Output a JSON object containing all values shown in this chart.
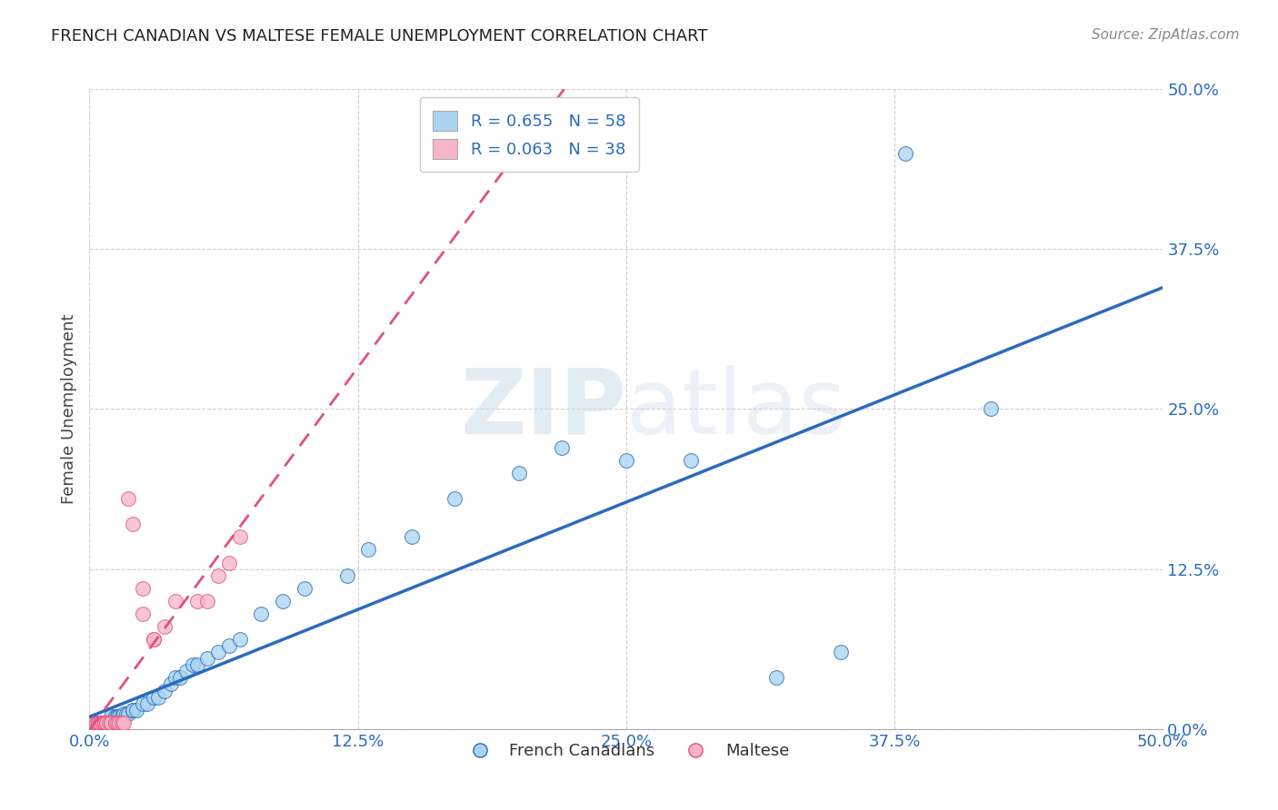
{
  "title": "FRENCH CANADIAN VS MALTESE FEMALE UNEMPLOYMENT CORRELATION CHART",
  "source": "Source: ZipAtlas.com",
  "ylabel": "Female Unemployment",
  "xlim": [
    0.0,
    0.5
  ],
  "ylim": [
    0.0,
    0.5
  ],
  "xtick_labels": [
    "0.0%",
    "12.5%",
    "25.0%",
    "37.5%",
    "50.0%"
  ],
  "ytick_labels": [
    "0.0%",
    "12.5%",
    "25.0%",
    "37.5%",
    "50.0%"
  ],
  "xtick_values": [
    0.0,
    0.125,
    0.25,
    0.375,
    0.5
  ],
  "ytick_values": [
    0.0,
    0.125,
    0.25,
    0.375,
    0.5
  ],
  "blue_R": "R = 0.655",
  "blue_N": "N = 58",
  "pink_R": "R = 0.063",
  "pink_N": "N = 38",
  "blue_color": "#A8D4F0",
  "pink_color": "#F8B4C8",
  "blue_line_color": "#2B6BBD",
  "pink_line_color": "#E05080",
  "watermark_zip": "ZIP",
  "watermark_atlas": "atlas",
  "legend_label_blue": "French Canadians",
  "legend_label_pink": "Maltese",
  "blue_x": [
    0.002,
    0.003,
    0.004,
    0.005,
    0.005,
    0.006,
    0.006,
    0.007,
    0.007,
    0.008,
    0.008,
    0.009,
    0.009,
    0.01,
    0.01,
    0.01,
    0.01,
    0.012,
    0.013,
    0.013,
    0.014,
    0.015,
    0.016,
    0.017,
    0.018,
    0.02,
    0.02,
    0.022,
    0.025,
    0.027,
    0.03,
    0.032,
    0.035,
    0.038,
    0.04,
    0.042,
    0.045,
    0.048,
    0.05,
    0.055,
    0.06,
    0.065,
    0.07,
    0.08,
    0.09,
    0.1,
    0.12,
    0.13,
    0.15,
    0.17,
    0.2,
    0.22,
    0.25,
    0.28,
    0.32,
    0.35,
    0.38,
    0.42
  ],
  "blue_y": [
    0.005,
    0.005,
    0.005,
    0.005,
    0.005,
    0.005,
    0.005,
    0.005,
    0.005,
    0.005,
    0.005,
    0.005,
    0.005,
    0.005,
    0.005,
    0.008,
    0.01,
    0.01,
    0.01,
    0.01,
    0.01,
    0.01,
    0.012,
    0.012,
    0.012,
    0.015,
    0.015,
    0.015,
    0.02,
    0.02,
    0.025,
    0.025,
    0.03,
    0.035,
    0.04,
    0.04,
    0.045,
    0.05,
    0.05,
    0.055,
    0.06,
    0.065,
    0.07,
    0.09,
    0.1,
    0.11,
    0.12,
    0.14,
    0.15,
    0.18,
    0.2,
    0.22,
    0.21,
    0.21,
    0.04,
    0.06,
    0.45,
    0.25
  ],
  "pink_x": [
    0.001,
    0.002,
    0.002,
    0.003,
    0.003,
    0.004,
    0.004,
    0.005,
    0.005,
    0.005,
    0.006,
    0.006,
    0.007,
    0.007,
    0.008,
    0.008,
    0.009,
    0.01,
    0.01,
    0.012,
    0.012,
    0.013,
    0.014,
    0.015,
    0.016,
    0.018,
    0.02,
    0.025,
    0.025,
    0.03,
    0.03,
    0.035,
    0.04,
    0.05,
    0.055,
    0.06,
    0.065,
    0.07
  ],
  "pink_y": [
    0.005,
    0.005,
    0.005,
    0.005,
    0.005,
    0.005,
    0.005,
    0.005,
    0.005,
    0.005,
    0.005,
    0.005,
    0.005,
    0.005,
    0.005,
    0.005,
    0.005,
    0.005,
    0.005,
    0.005,
    0.005,
    0.005,
    0.005,
    0.005,
    0.005,
    0.18,
    0.16,
    0.09,
    0.11,
    0.07,
    0.07,
    0.08,
    0.1,
    0.1,
    0.1,
    0.12,
    0.13,
    0.15
  ],
  "background_color": "#FFFFFF",
  "grid_color": "#CCCCCC"
}
